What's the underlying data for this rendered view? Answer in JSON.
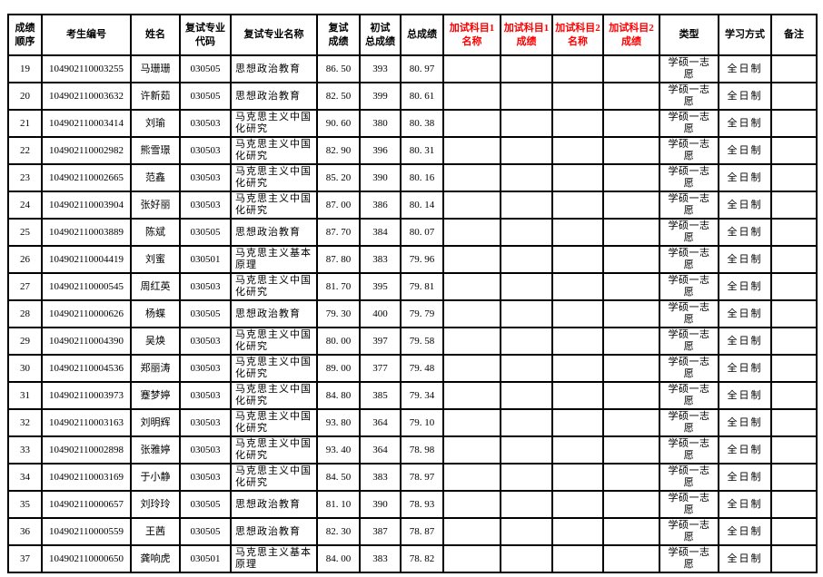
{
  "colors": {
    "background": "#ffffff",
    "text": "#000000",
    "border": "#000000",
    "makeup_header_accent": "#ff0000"
  },
  "table": {
    "columns": [
      {
        "key": "rank",
        "label": "成绩\n顺序",
        "red": false
      },
      {
        "key": "candidate-id",
        "label": "考生编号",
        "red": false
      },
      {
        "key": "name",
        "label": "姓名",
        "red": false
      },
      {
        "key": "major-code",
        "label": "复试专业\n代码",
        "red": false
      },
      {
        "key": "major-name",
        "label": "复试专业名称",
        "red": false
      },
      {
        "key": "retest-score",
        "label": "复试\n成绩",
        "red": false
      },
      {
        "key": "initial-total",
        "label": "初试\n总成绩",
        "red": false
      },
      {
        "key": "total-score",
        "label": "总成绩",
        "red": false
      },
      {
        "key": "extra1-name",
        "label": "加试科目1\n名称",
        "red": true
      },
      {
        "key": "extra1-score",
        "label": "加试科目1\n成绩",
        "red": true
      },
      {
        "key": "extra2-name",
        "label": "加试科目2\n名称",
        "red": true
      },
      {
        "key": "extra2-score",
        "label": "加试科目2\n成绩",
        "red": true
      },
      {
        "key": "type",
        "label": "类型",
        "red": false
      },
      {
        "key": "study-mode",
        "label": "学习方式",
        "red": false
      },
      {
        "key": "note",
        "label": "备注",
        "red": false
      }
    ],
    "rows": [
      [
        "19",
        "104902110003255",
        "马珊珊",
        "030505",
        "思想政治教育",
        "86. 50",
        "393",
        "80. 97",
        "",
        "",
        "",
        "",
        "学硕一志愿",
        "全日制",
        ""
      ],
      [
        "20",
        "104902110003632",
        "许新茹",
        "030505",
        "思想政治教育",
        "82. 50",
        "399",
        "80. 61",
        "",
        "",
        "",
        "",
        "学硕一志愿",
        "全日制",
        ""
      ],
      [
        "21",
        "104902110003414",
        "刘瑜",
        "030503",
        "马克思主义中国化研究",
        "90. 60",
        "380",
        "80. 38",
        "",
        "",
        "",
        "",
        "学硕一志愿",
        "全日制",
        ""
      ],
      [
        "22",
        "104902110002982",
        "熊雪璟",
        "030503",
        "马克思主义中国化研究",
        "82. 90",
        "396",
        "80. 31",
        "",
        "",
        "",
        "",
        "学硕一志愿",
        "全日制",
        ""
      ],
      [
        "23",
        "104902110002665",
        "范鑫",
        "030503",
        "马克思主义中国化研究",
        "85. 20",
        "390",
        "80. 16",
        "",
        "",
        "",
        "",
        "学硕一志愿",
        "全日制",
        ""
      ],
      [
        "24",
        "104902110003904",
        "张好丽",
        "030503",
        "马克思主义中国化研究",
        "87. 00",
        "386",
        "80. 14",
        "",
        "",
        "",
        "",
        "学硕一志愿",
        "全日制",
        ""
      ],
      [
        "25",
        "104902110003889",
        "陈斌",
        "030505",
        "思想政治教育",
        "87. 70",
        "384",
        "80. 07",
        "",
        "",
        "",
        "",
        "学硕一志愿",
        "全日制",
        ""
      ],
      [
        "26",
        "104902110004419",
        "刘蜜",
        "030501",
        "马克思主义基本原理",
        "87. 80",
        "383",
        "79. 96",
        "",
        "",
        "",
        "",
        "学硕一志愿",
        "全日制",
        ""
      ],
      [
        "27",
        "104902110000545",
        "周红英",
        "030503",
        "马克思主义中国化研究",
        "81. 70",
        "395",
        "79. 81",
        "",
        "",
        "",
        "",
        "学硕一志愿",
        "全日制",
        ""
      ],
      [
        "28",
        "104902110000626",
        "杨蝶",
        "030505",
        "思想政治教育",
        "79. 30",
        "400",
        "79. 79",
        "",
        "",
        "",
        "",
        "学硕一志愿",
        "全日制",
        ""
      ],
      [
        "29",
        "104902110004390",
        "吴焕",
        "030503",
        "马克思主义中国化研究",
        "80. 00",
        "397",
        "79. 58",
        "",
        "",
        "",
        "",
        "学硕一志愿",
        "全日制",
        ""
      ],
      [
        "30",
        "104902110004536",
        "郑丽涛",
        "030503",
        "马克思主义中国化研究",
        "89. 00",
        "377",
        "79. 48",
        "",
        "",
        "",
        "",
        "学硕一志愿",
        "全日制",
        ""
      ],
      [
        "31",
        "104902110003973",
        "蹇梦婷",
        "030503",
        "马克思主义中国化研究",
        "84. 80",
        "385",
        "79. 34",
        "",
        "",
        "",
        "",
        "学硕一志愿",
        "全日制",
        ""
      ],
      [
        "32",
        "104902110003163",
        "刘明辉",
        "030503",
        "马克思主义中国化研究",
        "93. 80",
        "364",
        "79. 10",
        "",
        "",
        "",
        "",
        "学硕一志愿",
        "全日制",
        ""
      ],
      [
        "33",
        "104902110002898",
        "张雅婷",
        "030503",
        "马克思主义中国化研究",
        "93. 40",
        "364",
        "78. 98",
        "",
        "",
        "",
        "",
        "学硕一志愿",
        "全日制",
        ""
      ],
      [
        "34",
        "104902110003169",
        "于小静",
        "030503",
        "马克思主义中国化研究",
        "84. 50",
        "383",
        "78. 97",
        "",
        "",
        "",
        "",
        "学硕一志愿",
        "全日制",
        ""
      ],
      [
        "35",
        "104902110000657",
        "刘玲玲",
        "030505",
        "思想政治教育",
        "81. 10",
        "390",
        "78. 93",
        "",
        "",
        "",
        "",
        "学硕一志愿",
        "全日制",
        ""
      ],
      [
        "36",
        "104902110000559",
        "王茜",
        "030505",
        "思想政治教育",
        "82. 30",
        "387",
        "78. 87",
        "",
        "",
        "",
        "",
        "学硕一志愿",
        "全日制",
        ""
      ],
      [
        "37",
        "104902110000650",
        "龚响虎",
        "030501",
        "马克思主义基本原理",
        "84. 00",
        "383",
        "78. 82",
        "",
        "",
        "",
        "",
        "学硕一志愿",
        "全日制",
        ""
      ]
    ]
  }
}
